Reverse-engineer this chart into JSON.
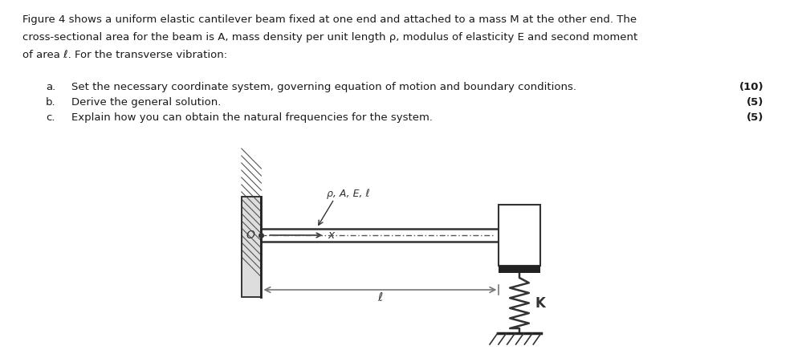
{
  "bg_color": "#ffffff",
  "text_color": "#1a1a1a",
  "title_lines": [
    "Figure 4 shows a uniform elastic cantilever beam fixed at one end and attached to a mass M at the other end. The",
    "cross-sectional area for the beam is A, mass density per unit length ρ, modulus of elasticity E and second moment",
    "of area ℓ. For the transverse vibration:"
  ],
  "items": [
    {
      "label": "a.",
      "text": "Set the necessary coordinate system, governing equation of motion and boundary conditions.",
      "mark": "(10)"
    },
    {
      "label": "b.",
      "text": "Derive the general solution.",
      "mark": "(5)"
    },
    {
      "label": "c.",
      "text": "Explain how you can obtain the natural frequencies for the system.",
      "mark": "(5)"
    }
  ]
}
